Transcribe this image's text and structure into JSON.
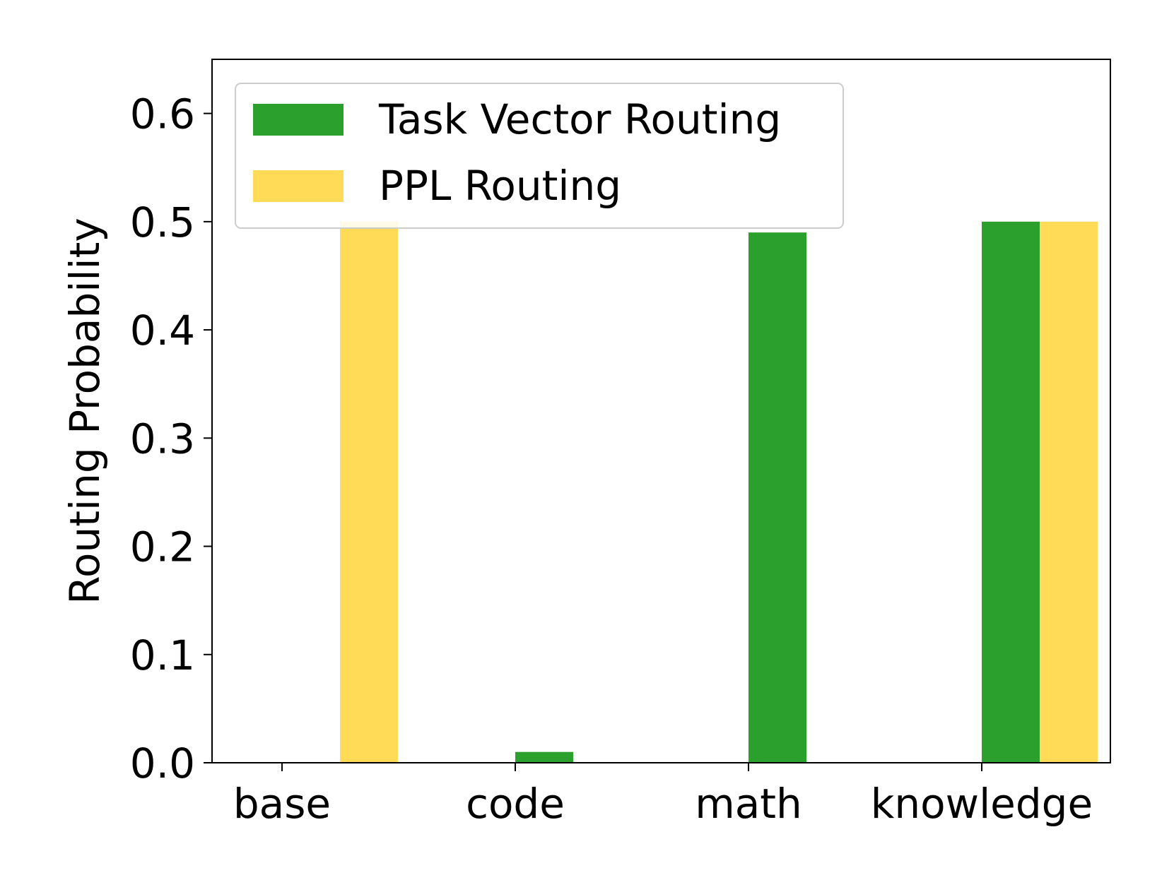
{
  "chart_data": {
    "type": "bar",
    "categories": [
      "base",
      "code",
      "math",
      "knowledge"
    ],
    "series": [
      {
        "name": "Task Vector Routing",
        "color": "#2ca02c",
        "values": [
          0.0,
          0.01,
          0.49,
          0.5
        ]
      },
      {
        "name": "PPL Routing",
        "color": "#ffdb58",
        "values": [
          0.5,
          0.0,
          0.0,
          0.5
        ]
      }
    ],
    "title": "",
    "xlabel": "",
    "ylabel": "Routing Probability",
    "ylim": [
      0,
      0.65
    ],
    "yticks": [
      0.0,
      0.1,
      0.2,
      0.3,
      0.4,
      0.5,
      0.6
    ],
    "ytick_labels": [
      "0.0",
      "0.1",
      "0.2",
      "0.3",
      "0.4",
      "0.5",
      "0.6"
    ],
    "grid": false,
    "legend": "top-left"
  }
}
